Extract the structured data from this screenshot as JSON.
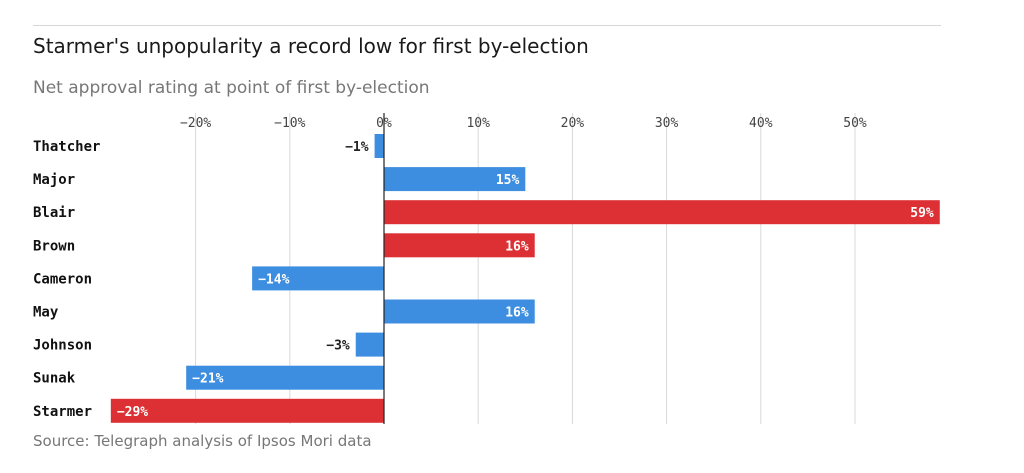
{
  "header": {
    "title": "Starmer's unpopularity a record low for first by-election",
    "subtitle": "Net approval rating at point of first by-election",
    "source": "Source: Telegraph analysis of Ipsos Mori data"
  },
  "colors": {
    "conservative": "#3d8ee0",
    "labour": "#dc3035",
    "grid": "#d9d9d9"
  },
  "chart_data": {
    "type": "bar",
    "orientation": "horizontal",
    "title": "Starmer's unpopularity a record low for first by-election",
    "subtitle": "Net approval rating at point of first by-election",
    "xlim": [
      -29,
      59
    ],
    "ticks": [
      -20,
      -10,
      0,
      10,
      20,
      30,
      40,
      50
    ],
    "tick_labels": [
      "−20%",
      "−10%",
      "0%",
      "10%",
      "20%",
      "30%",
      "40%",
      "50%"
    ],
    "grid": true,
    "categories": [
      "Thatcher",
      "Major",
      "Blair",
      "Brown",
      "Cameron",
      "May",
      "Johnson",
      "Sunak",
      "Starmer"
    ],
    "values": [
      -1,
      15,
      59,
      16,
      -14,
      16,
      -3,
      -21,
      -29
    ],
    "value_labels": [
      "−1%",
      "15%",
      "59%",
      "16%",
      "−14%",
      "16%",
      "−3%",
      "−21%",
      "−29%"
    ],
    "party": [
      "conservative",
      "conservative",
      "labour",
      "labour",
      "conservative",
      "conservative",
      "conservative",
      "conservative",
      "labour"
    ]
  }
}
